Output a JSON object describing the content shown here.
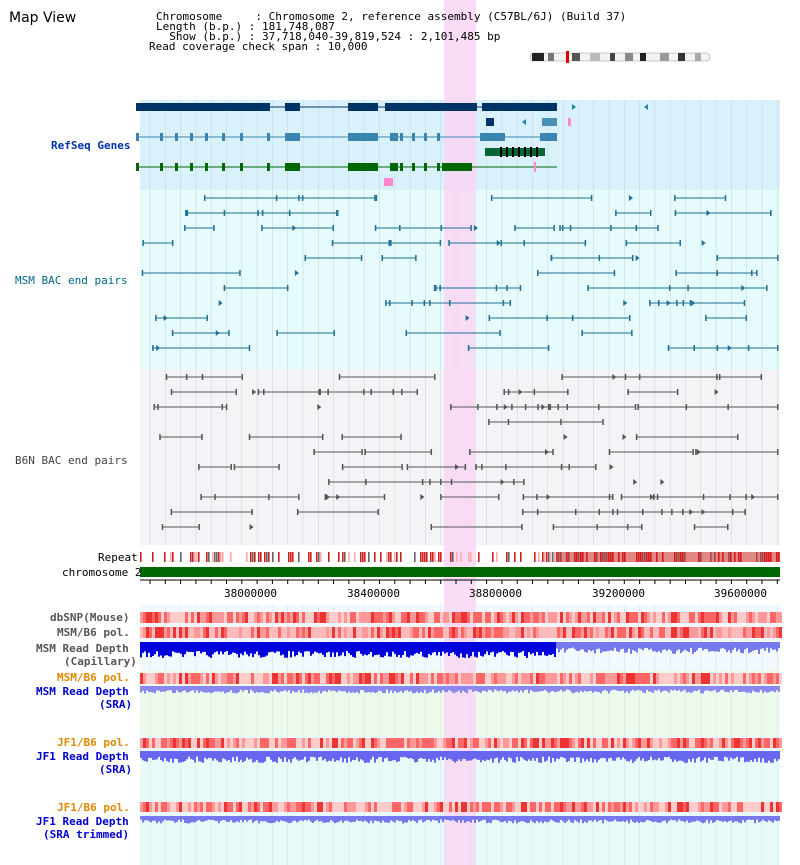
{
  "title": "Map View",
  "info": {
    "lines": [
      "Chromosome     : Chromosome 2, reference assembly (C57BL/6J) (Build 37)",
      "Length (b.p.) : 181,748,087",
      "  Show (b.p.) : 37,718,040-39,819,524 : 2,101,485 bp",
      "Read coverage check span : 10,000"
    ]
  },
  "tracks": {
    "refseq": "RefSeq Genes",
    "msm_bac": "MSM BAC end pairs",
    "b6n_bac": "B6N BAC end pairs",
    "repeat": "Repeat",
    "chromosome": "chromosome 2",
    "dbsnp": "dbSNP(Mouse)",
    "msm_b6_pol": "MSM/B6 pol.",
    "msm_depth_cap_1": "MSM Read Depth",
    "msm_depth_cap_2": "(Capillary)",
    "msm_b6_pol_sra": "MSM/B6 pol.",
    "msm_depth_sra_1": "MSM Read Depth",
    "msm_depth_sra_2": "(SRA)",
    "jf1_b6_pol": "JF1/B6 pol.",
    "jf1_depth_1": "JF1 Read Depth",
    "jf1_depth_2": "(SRA)",
    "jf1_b6_pol_trim": "JF1/B6 pol.",
    "jf1_trim_1": "JF1 Read Depth",
    "jf1_trim_2": "(SRA trimmed)"
  },
  "axis": {
    "ticks": [
      "38000000",
      "38400000",
      "38800000",
      "39200000",
      "39600000"
    ]
  },
  "colors": {
    "refseq_label": "#0033aa",
    "msm_label": "#006688",
    "pol_orange": "#e08800",
    "depth_blue": "#0000cc",
    "highlight": "#f9d6f4"
  }
}
